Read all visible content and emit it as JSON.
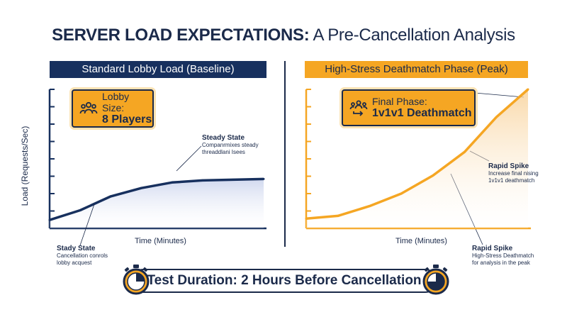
{
  "header": {
    "title_bold": "SERVER LOAD EXPECTATIONS:",
    "title_rest": "A Pre-Cancellation Analysis"
  },
  "footer": {
    "label": "Test Duration: 2 Hours Before Cancellation"
  },
  "colors": {
    "navy": "#17305e",
    "orange": "#f5a623",
    "ink": "#1b2a4a"
  },
  "chart_data": [
    {
      "type": "area",
      "title": "Standard Lobby Load (Baseline)",
      "xlabel": "Time (Minutes)",
      "ylabel": "Load (Requests/Sec)",
      "x": [
        0,
        1,
        2,
        3,
        4,
        5,
        6,
        7
      ],
      "values": [
        0.6,
        1.3,
        2.3,
        2.9,
        3.3,
        3.45,
        3.5,
        3.55
      ],
      "ylim": [
        0,
        10
      ],
      "yticks": 8,
      "callout": {
        "line1": "Lobby Size:",
        "line2": "8 Players",
        "icon": "group-icon"
      },
      "annotations": [
        {
          "title": "Steady State",
          "text": [
            "Companrmixes steady",
            "threaddlani Isees"
          ]
        },
        {
          "title": "Stady State",
          "text": [
            "Cancellation conrols",
            "lobby acquest"
          ]
        }
      ]
    },
    {
      "type": "area",
      "title": "High-Stress Deathmatch Phase (Peak)",
      "xlabel": "Time (Minutes)",
      "ylabel": "",
      "x": [
        0,
        1,
        2,
        3,
        4,
        5,
        6,
        7
      ],
      "values": [
        0.7,
        0.9,
        1.6,
        2.5,
        3.8,
        5.5,
        8.0,
        10.0
      ],
      "ylim": [
        0,
        10
      ],
      "yticks": 8,
      "callout": {
        "line1": "Final Phase:",
        "line2": "1v1v1 Deathmatch",
        "icon": "group-arrow-icon"
      },
      "annotations": [
        {
          "title": "Rapid Spike",
          "text": [
            "Increase final nising",
            "1v1v1 deathmatch"
          ]
        },
        {
          "title": "Rapid Spike",
          "text": [
            "High-Stress Deathmatch",
            "for analysis in the peak"
          ]
        }
      ]
    }
  ]
}
